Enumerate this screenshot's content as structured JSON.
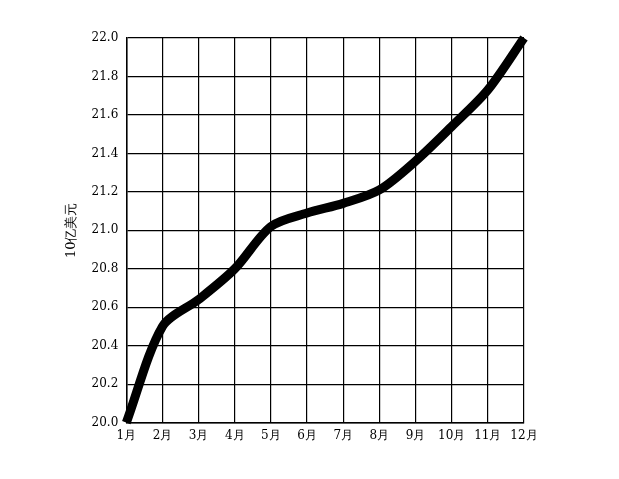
{
  "chart_data": {
    "type": "line",
    "y_label": "10亿美元",
    "categories": [
      "1月",
      "2月",
      "3月",
      "4月",
      "5月",
      "6月",
      "7月",
      "8月",
      "9月",
      "10月",
      "11月",
      "12月"
    ],
    "values": [
      20.0,
      20.5,
      20.64,
      20.8,
      21.02,
      21.09,
      21.14,
      21.21,
      21.36,
      21.54,
      21.73,
      22.0
    ],
    "color": "#000000",
    "ylim": [
      20,
      22
    ],
    "yticks": [
      {
        "value": 20,
        "label": "20.0"
      },
      20.2,
      20.4,
      20.6,
      20.8,
      {
        "value": 21,
        "label": "21.0"
      },
      21.2,
      21.4,
      21.6,
      21.8,
      {
        "value": 22,
        "label": "22.0"
      }
    ],
    "grid": true
  }
}
